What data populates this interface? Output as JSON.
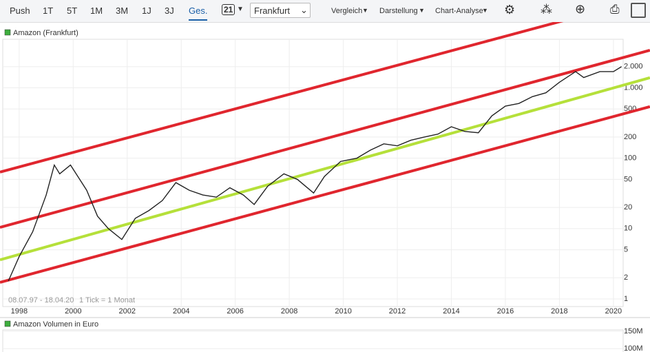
{
  "toolbar": {
    "periods": [
      "Push",
      "1T",
      "5T",
      "1M",
      "3M",
      "1J",
      "3J",
      "Ges."
    ],
    "active_period": 7,
    "calendar_day": "21",
    "exchange": "Frankfurt",
    "menus": [
      "Vergleich",
      "Darstellung",
      "Chart-Analyse"
    ]
  },
  "chart_data": {
    "type": "line",
    "title": "Amazon (Frankfurt)",
    "legend_color": "#3fae3f",
    "color": "#222222",
    "log_scale": true,
    "grid": true,
    "x": [
      1997.6,
      1998.0,
      1998.5,
      1999.0,
      1999.3,
      1999.5,
      1999.9,
      2000.5,
      2000.9,
      2001.3,
      2001.8,
      2002.3,
      2002.8,
      2003.3,
      2003.8,
      2004.3,
      2004.8,
      2005.3,
      2005.8,
      2006.3,
      2006.7,
      2007.2,
      2007.8,
      2008.3,
      2008.9,
      2009.3,
      2009.9,
      2010.5,
      2011.0,
      2011.5,
      2012.0,
      2012.5,
      2013.0,
      2013.5,
      2014.0,
      2014.5,
      2015.0,
      2015.5,
      2016.0,
      2016.5,
      2017.0,
      2017.5,
      2018.0,
      2018.6,
      2018.9,
      2019.5,
      2020.0,
      2020.3
    ],
    "values": [
      1.8,
      4,
      9,
      30,
      80,
      60,
      80,
      35,
      15,
      10,
      7,
      14,
      18,
      25,
      45,
      35,
      30,
      28,
      38,
      30,
      22,
      40,
      60,
      50,
      32,
      55,
      90,
      100,
      130,
      160,
      150,
      180,
      200,
      220,
      280,
      240,
      230,
      400,
      550,
      600,
      750,
      850,
      1200,
      1700,
      1400,
      1700,
      1700,
      2000
    ],
    "xlim": [
      1997.29,
      2020.36
    ],
    "xticks": [
      1998,
      2000,
      2002,
      2004,
      2006,
      2008,
      2010,
      2012,
      2014,
      2016,
      2018,
      2020
    ],
    "ylim": [
      0.78,
      4900
    ],
    "yticks": [
      1,
      2,
      5,
      10,
      20,
      50,
      100,
      200,
      500,
      {
        "value": 1000,
        "label": "1.000"
      },
      {
        "value": 2000,
        "label": "2.000"
      }
    ],
    "date_range": "08.07.97 - 18.04.20",
    "tick_info": "1 Tick = 1 Monat",
    "trend_lines": [
      {
        "color": "#e0262e",
        "x": [
          1997.29,
          2020.99
        ],
        "values": [
          63.5,
          17700
        ]
      },
      {
        "color": "#e0262e",
        "x": [
          1997.29,
          2021.35
        ],
        "values": [
          10.4,
          3420
        ]
      },
      {
        "color": "#e0262e",
        "x": [
          1997.29,
          2021.35
        ],
        "values": [
          1.72,
          540
        ]
      },
      {
        "color": "#b5e03a",
        "x": [
          1997.29,
          2021.35
        ],
        "values": [
          3.6,
          1392
        ]
      }
    ],
    "volume": {
      "title": "Amazon Volumen in Euro",
      "ylim": [
        90400000,
        153800000
      ],
      "yticks": [
        {
          "value": 150000000,
          "label": "150M"
        },
        {
          "value": 100000000,
          "label": "100M"
        }
      ]
    }
  }
}
